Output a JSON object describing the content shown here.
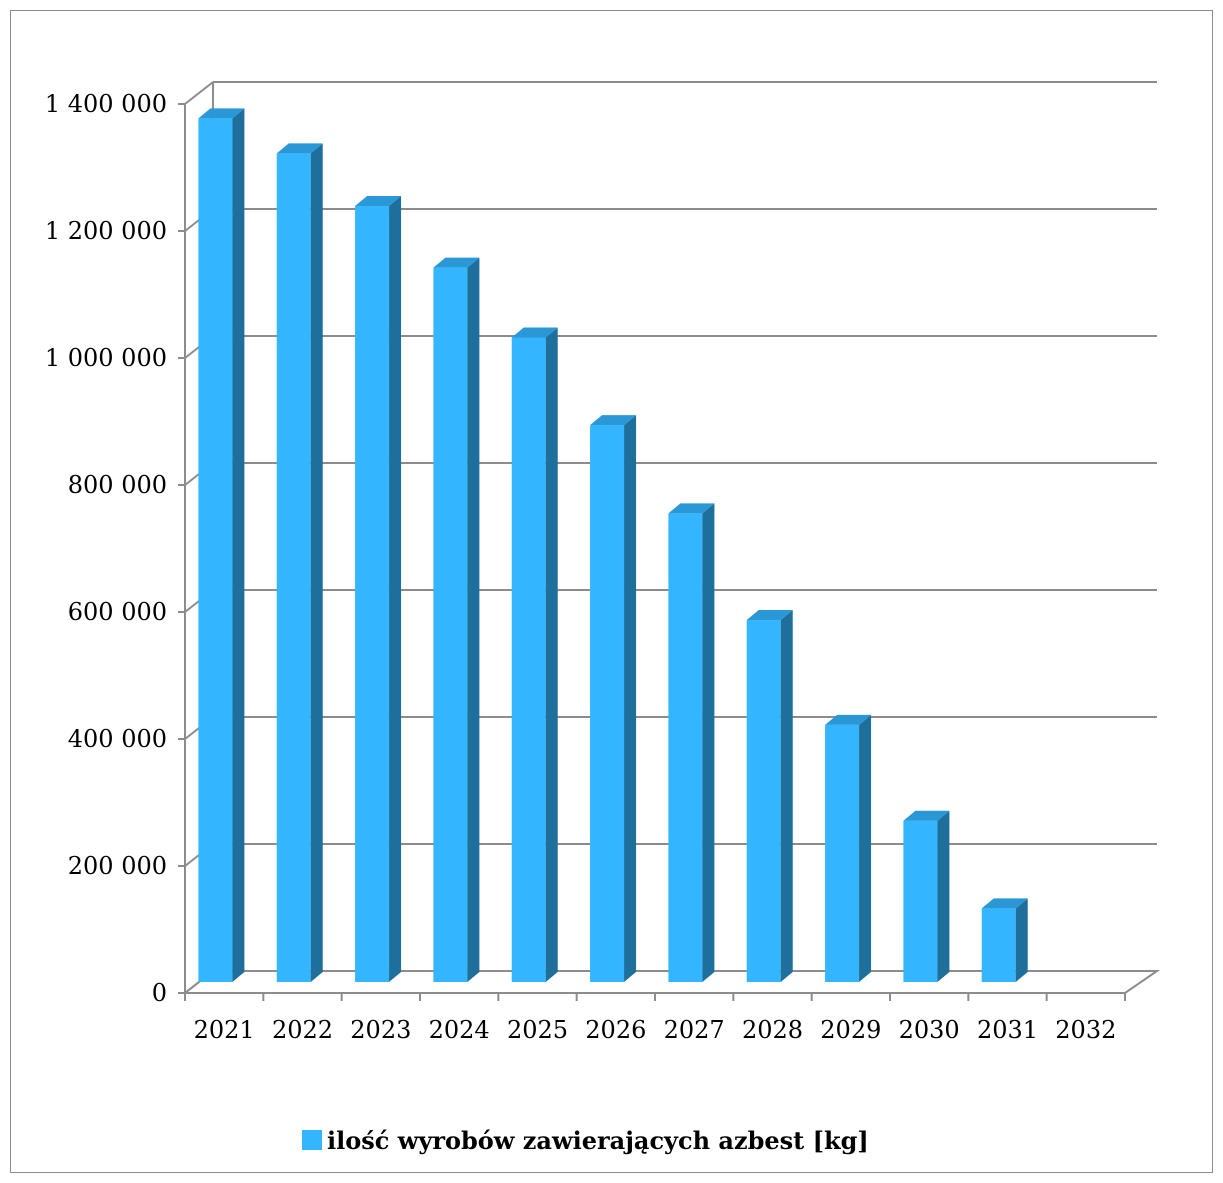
{
  "chart_data": {
    "type": "bar",
    "categories": [
      "2021",
      "2022",
      "2023",
      "2024",
      "2025",
      "2026",
      "2027",
      "2028",
      "2029",
      "2030",
      "2031",
      "2032"
    ],
    "series": [
      {
        "name": "ilość wyrobów zawierających azbest [kg]",
        "values": [
          1360000,
          1305000,
          1222000,
          1125000,
          1015000,
          877000,
          738000,
          570000,
          405000,
          254000,
          116000,
          0
        ]
      }
    ],
    "ylim": [
      0,
      1400000
    ],
    "yticks": [
      0,
      200000,
      400000,
      600000,
      800000,
      1000000,
      1200000,
      1400000
    ],
    "ytick_labels": [
      "0",
      "200 000",
      "400 000",
      "600 000",
      "800 000",
      "1 000 000",
      "1 200 000",
      "1 400 000"
    ],
    "grid": true,
    "legend_position": "bottom",
    "three_d": true,
    "colors": {
      "bar_front": "#33b5ff",
      "bar_top": "#2a98d6",
      "bar_side": "#1f6f9c",
      "grid": "#8c8c8c"
    }
  }
}
